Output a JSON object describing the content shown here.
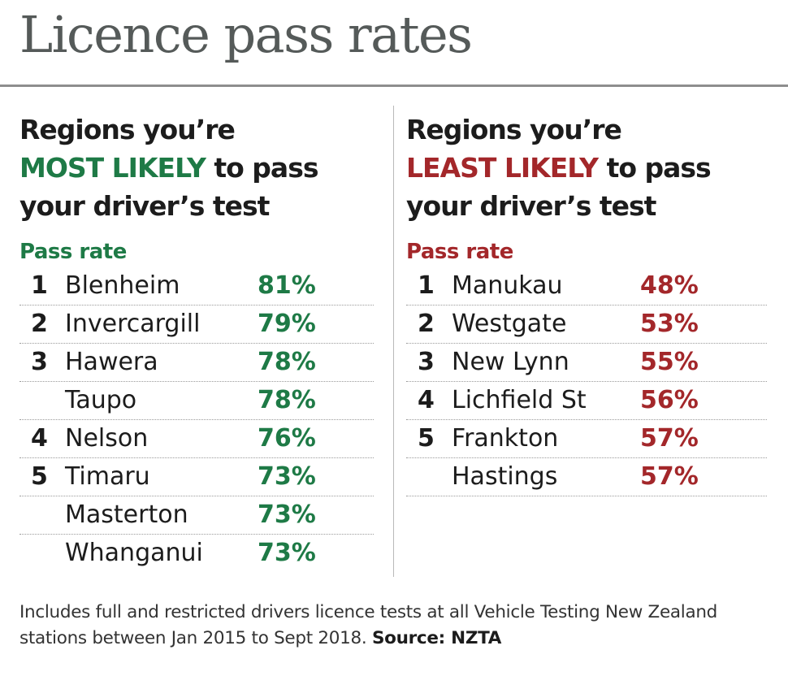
{
  "title": "Licence pass rates",
  "colors": {
    "most": "#1e7a46",
    "least": "#a3272a"
  },
  "most_likely": {
    "heading_line1": "Regions you’re",
    "heading_emph": "MOST LIKELY",
    "heading_tail": " to pass",
    "heading_line3": "your driver’s test",
    "pass_rate_label": "Pass rate",
    "rows": [
      {
        "rank": "1",
        "name": "Blenheim",
        "rate": "81%"
      },
      {
        "rank": "2",
        "name": "Invercargill",
        "rate": "79%"
      },
      {
        "rank": "3",
        "name": "Hawera",
        "rate": "78%"
      },
      {
        "rank": "",
        "name": "Taupo",
        "rate": "78%"
      },
      {
        "rank": "4",
        "name": "Nelson",
        "rate": "76%"
      },
      {
        "rank": "5",
        "name": "Timaru",
        "rate": "73%"
      },
      {
        "rank": "",
        "name": "Masterton",
        "rate": "73%"
      },
      {
        "rank": "",
        "name": "Whanganui",
        "rate": "73%"
      }
    ]
  },
  "least_likely": {
    "heading_line1": "Regions you’re",
    "heading_emph": "LEAST LIKELY",
    "heading_tail": " to pass",
    "heading_line3": "your driver’s test",
    "pass_rate_label": "Pass rate",
    "rows": [
      {
        "rank": "1",
        "name": "Manukau",
        "rate": "48%"
      },
      {
        "rank": "2",
        "name": "Westgate",
        "rate": "53%"
      },
      {
        "rank": "3",
        "name": "New Lynn",
        "rate": "55%"
      },
      {
        "rank": "4",
        "name": "Lichfield St",
        "rate": "56%"
      },
      {
        "rank": "5",
        "name": "Frankton",
        "rate": "57%"
      },
      {
        "rank": "",
        "name": "Hastings",
        "rate": "57%"
      }
    ]
  },
  "footnote": {
    "text": "Includes full and restricted drivers licence tests at all Vehicle Testing New Zealand stations between Jan 2015 to Sept 2018. ",
    "source": "Source: NZTA"
  }
}
